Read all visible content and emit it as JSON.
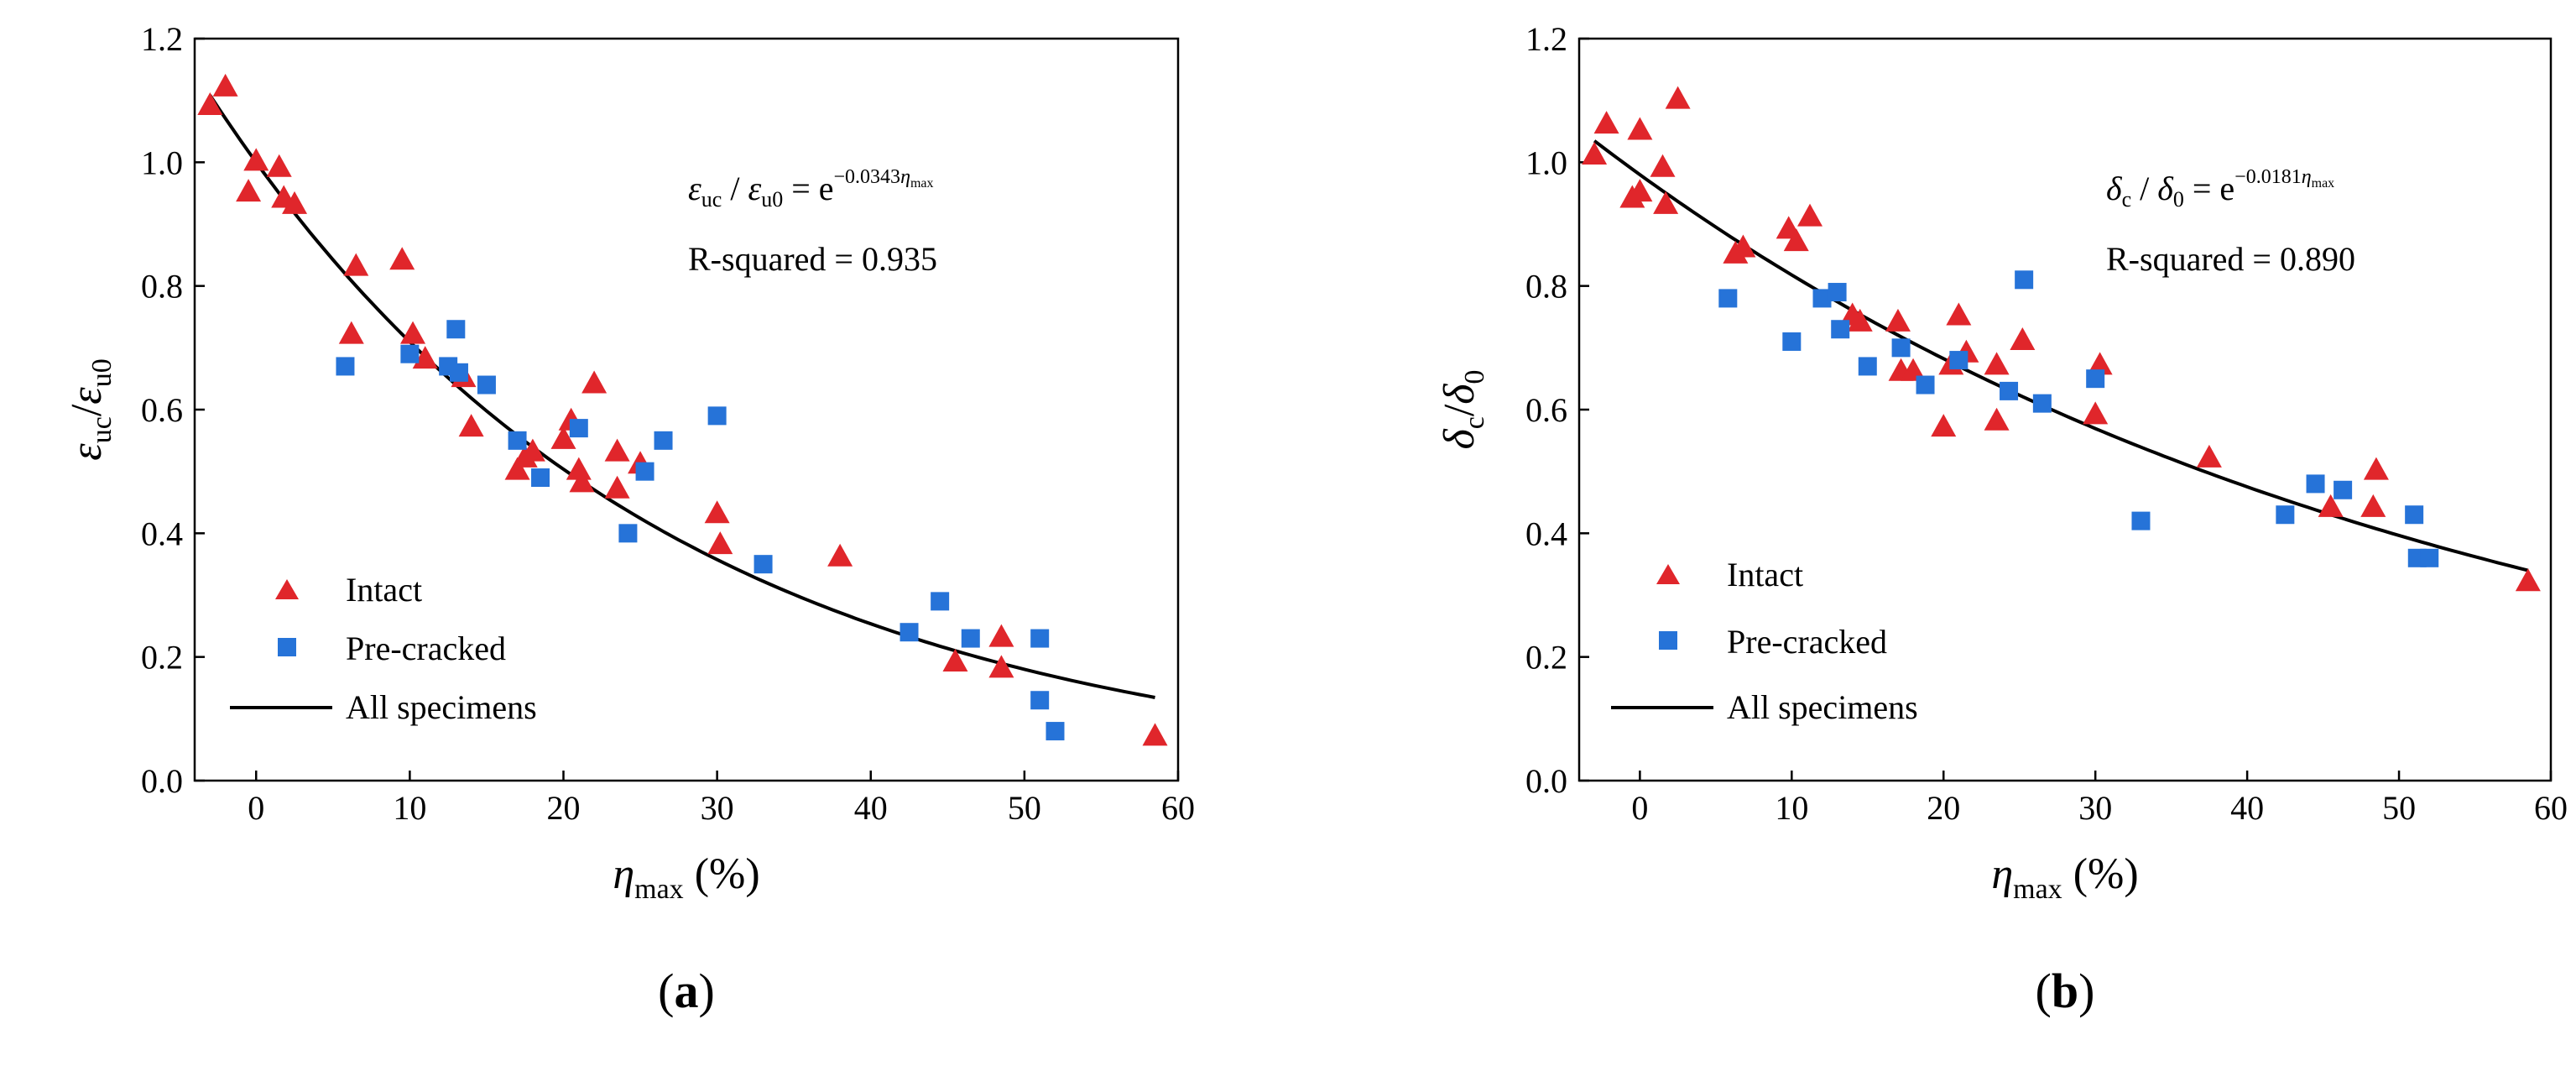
{
  "chart_data": [
    {
      "type": "scatter",
      "panel_label": {
        "open": "(",
        "letter": "a",
        "close": ")"
      },
      "ylabel": {
        "base": "ε",
        "sub": "uc",
        "slash": "/",
        "base2": "ε",
        "sub2": "u0"
      },
      "xlabel": {
        "base": "η",
        "sub": "max",
        "unit": " (%)"
      },
      "xlim": [
        -4,
        60
      ],
      "ylim": [
        0,
        1.2
      ],
      "xticks": [
        "0",
        "10",
        "20",
        "30",
        "40",
        "50",
        "60"
      ],
      "xtick_values": [
        0,
        10,
        20,
        30,
        40,
        50,
        60
      ],
      "yticks": [
        "0.0",
        "0.2",
        "0.4",
        "0.6",
        "0.8",
        "1.0",
        "1.2"
      ],
      "ytick_values": [
        0,
        0.2,
        0.4,
        0.6,
        0.8,
        1.0,
        1.2
      ],
      "annotation": {
        "eq_lhs_a": "ε",
        "eq_lhs_a_sub": "uc",
        "eq_slash": " / ",
        "eq_lhs_b": "ε",
        "eq_lhs_b_sub": "u0",
        "eq_equals": " = e",
        "eq_exponent": "−0.0343",
        "eq_exp_eta": "η",
        "eq_exp_sub": "max",
        "r_squared": "R-squared = 0.935"
      },
      "legend": [
        "Intact",
        "Pre-cracked",
        "All specimens"
      ],
      "fit": {
        "a": 1.0,
        "b": -0.0343
      },
      "series": [
        {
          "name": "Intact",
          "marker": "triangle",
          "color": "#e0262b",
          "points": [
            [
              -3,
              1.09
            ],
            [
              -2,
              1.12
            ],
            [
              0,
              1.0
            ],
            [
              1.5,
              0.99
            ],
            [
              -0.5,
              0.95
            ],
            [
              1.8,
              0.94
            ],
            [
              2.5,
              0.93
            ],
            [
              6.5,
              0.83
            ],
            [
              6.2,
              0.72
            ],
            [
              9.5,
              0.84
            ],
            [
              10.2,
              0.72
            ],
            [
              11,
              0.68
            ],
            [
              14,
              0.57
            ],
            [
              13.5,
              0.65
            ],
            [
              17,
              0.5
            ],
            [
              17.5,
              0.52
            ],
            [
              18,
              0.53
            ],
            [
              20,
              0.55
            ],
            [
              20.5,
              0.58
            ],
            [
              21,
              0.5
            ],
            [
              21.2,
              0.48
            ],
            [
              22,
              0.64
            ],
            [
              23.5,
              0.53
            ],
            [
              23.5,
              0.47
            ],
            [
              25,
              0.51
            ],
            [
              30,
              0.43
            ],
            [
              30.2,
              0.38
            ],
            [
              38,
              0.36
            ],
            [
              45.5,
              0.19
            ],
            [
              48.5,
              0.18
            ],
            [
              48.5,
              0.23
            ],
            [
              58.5,
              0.07
            ]
          ]
        },
        {
          "name": "Pre-cracked",
          "marker": "square",
          "color": "#2673d8",
          "points": [
            [
              5.8,
              0.67
            ],
            [
              10,
              0.69
            ],
            [
              12.5,
              0.67
            ],
            [
              13,
              0.73
            ],
            [
              13.2,
              0.66
            ],
            [
              15,
              0.64
            ],
            [
              17,
              0.55
            ],
            [
              18.5,
              0.49
            ],
            [
              21,
              0.57
            ],
            [
              24.2,
              0.4
            ],
            [
              25.3,
              0.5
            ],
            [
              26.5,
              0.55
            ],
            [
              30,
              0.59
            ],
            [
              33,
              0.35
            ],
            [
              42.5,
              0.24
            ],
            [
              44.5,
              0.29
            ],
            [
              46.5,
              0.23
            ],
            [
              51,
              0.23
            ],
            [
              51,
              0.13
            ],
            [
              52,
              0.08
            ]
          ]
        }
      ]
    },
    {
      "type": "scatter",
      "panel_label": {
        "open": "(",
        "letter": "b",
        "close": ")"
      },
      "ylabel": {
        "base": "δ",
        "sub": "c",
        "slash": "/",
        "base2": "δ",
        "sub2": "0"
      },
      "xlabel": {
        "base": "η",
        "sub": "max",
        "unit": " (%)"
      },
      "xlim": [
        -4,
        60
      ],
      "ylim": [
        0,
        1.2
      ],
      "xticks": [
        "0",
        "10",
        "20",
        "30",
        "40",
        "50",
        "60"
      ],
      "xtick_values": [
        0,
        10,
        20,
        30,
        40,
        50,
        60
      ],
      "yticks": [
        "0.0",
        "0.2",
        "0.4",
        "0.6",
        "0.8",
        "1.0",
        "1.2"
      ],
      "ytick_values": [
        0,
        0.2,
        0.4,
        0.6,
        0.8,
        1.0,
        1.2
      ],
      "annotation": {
        "eq_lhs_a": "δ",
        "eq_lhs_a_sub": "c",
        "eq_slash": " / ",
        "eq_lhs_b": "δ",
        "eq_lhs_b_sub": "0",
        "eq_equals": " = e",
        "eq_exponent": "−0.0181",
        "eq_exp_eta": "η",
        "eq_exp_sub": "max",
        "r_squared": "R-squared = 0.890"
      },
      "legend": [
        "Intact",
        "Pre-cracked",
        "All specimens"
      ],
      "fit": {
        "a": 0.98,
        "b": -0.0181
      },
      "series": [
        {
          "name": "Intact",
          "marker": "triangle",
          "color": "#e0262b",
          "points": [
            [
              -3,
              1.01
            ],
            [
              -2.2,
              1.06
            ],
            [
              -0.5,
              0.94
            ],
            [
              0,
              1.05
            ],
            [
              0,
              0.95
            ],
            [
              1.5,
              0.99
            ],
            [
              1.7,
              0.93
            ],
            [
              2.5,
              1.1
            ],
            [
              6.3,
              0.85
            ],
            [
              6.8,
              0.86
            ],
            [
              9.8,
              0.89
            ],
            [
              10.3,
              0.87
            ],
            [
              11.2,
              0.91
            ],
            [
              14,
              0.75
            ],
            [
              14.5,
              0.74
            ],
            [
              17,
              0.74
            ],
            [
              17.2,
              0.66
            ],
            [
              18,
              0.66
            ],
            [
              20,
              0.57
            ],
            [
              20.5,
              0.67
            ],
            [
              21,
              0.75
            ],
            [
              21.5,
              0.69
            ],
            [
              23.5,
              0.58
            ],
            [
              23.5,
              0.67
            ],
            [
              25.2,
              0.71
            ],
            [
              30,
              0.59
            ],
            [
              30.3,
              0.67
            ],
            [
              37.5,
              0.52
            ],
            [
              45.5,
              0.44
            ],
            [
              48.3,
              0.44
            ],
            [
              48.5,
              0.5
            ],
            [
              58.5,
              0.32
            ]
          ]
        },
        {
          "name": "Pre-cracked",
          "marker": "square",
          "color": "#2673d8",
          "points": [
            [
              5.8,
              0.78
            ],
            [
              10,
              0.71
            ],
            [
              12,
              0.78
            ],
            [
              13,
              0.79
            ],
            [
              13.2,
              0.73
            ],
            [
              15,
              0.67
            ],
            [
              17.2,
              0.7
            ],
            [
              18.8,
              0.64
            ],
            [
              21,
              0.68
            ],
            [
              24.3,
              0.63
            ],
            [
              25.3,
              0.81
            ],
            [
              26.5,
              0.61
            ],
            [
              30,
              0.65
            ],
            [
              33,
              0.42
            ],
            [
              42.5,
              0.43
            ],
            [
              44.5,
              0.48
            ],
            [
              46.3,
              0.47
            ],
            [
              51,
              0.43
            ],
            [
              51.2,
              0.36
            ],
            [
              52,
              0.36
            ]
          ]
        }
      ]
    }
  ]
}
